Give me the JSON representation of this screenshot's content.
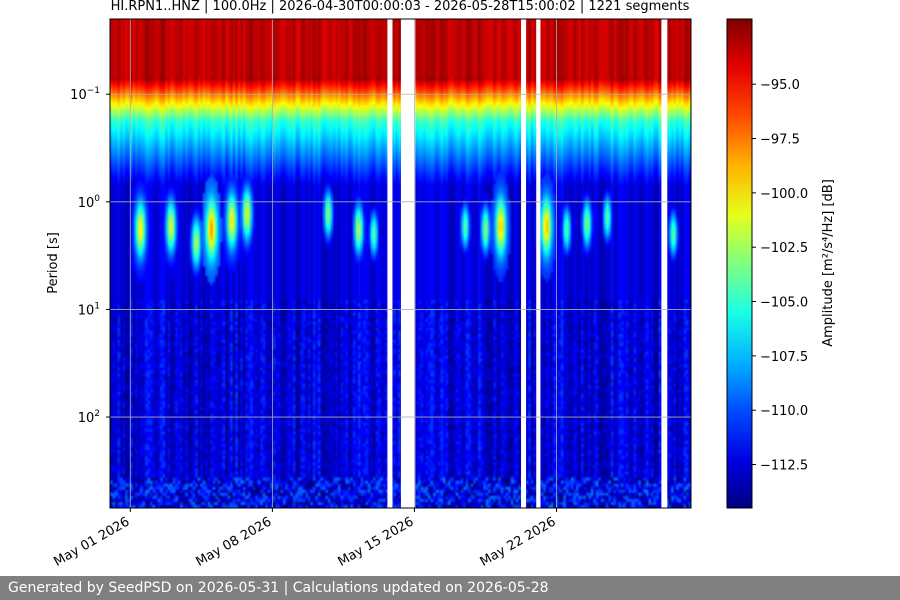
{
  "footer": {
    "text": "Generated by SeedPSD on 2026-05-31 | Calculations updated on 2026-05-28"
  },
  "chart_data": {
    "type": "heatmap",
    "title": "HI.RPN1..HNZ | 100.0Hz | 2026-04-30T00:00:03 - 2026-05-28T15:00:02 | 1221 segments",
    "xlabel": "",
    "ylabel": "Period [s]",
    "colorbar_label": "Amplitude [m²/s⁴/Hz] [dB]",
    "colormap": "jet",
    "x_range": [
      "2026-04-30T00:00:03",
      "2026-05-28T15:00:02"
    ],
    "x_ticks": [
      "May 01 2026",
      "May 08 2026",
      "May 15 2026",
      "May 22 2026"
    ],
    "y_scale": "log",
    "y_inverted": true,
    "y_range": [
      0.02,
      700
    ],
    "y_ticks": [
      {
        "value": 0.1,
        "base": "10",
        "exp": "−1"
      },
      {
        "value": 1,
        "base": "10",
        "exp": "0"
      },
      {
        "value": 10,
        "base": "10",
        "exp": "1"
      },
      {
        "value": 100,
        "base": "10",
        "exp": "2"
      }
    ],
    "color_range": [
      -114.5,
      -92.0
    ],
    "colorbar_ticks": [
      "−95.0",
      "−97.5",
      "−100.0",
      "−102.5",
      "−105.0",
      "−107.5",
      "−110.0",
      "−112.5"
    ],
    "colorbar_tick_values": [
      -95.0,
      -97.5,
      -100.0,
      -102.5,
      -105.0,
      -107.5,
      -110.0,
      -112.5
    ],
    "data_gaps": [
      [
        "2026-05-13T16:00:00",
        "2026-05-13T22:00:00"
      ],
      [
        "2026-05-14T08:00:00",
        "2026-05-15T01:00:00"
      ],
      [
        "2026-05-20T06:00:00",
        "2026-05-20T12:00:00"
      ],
      [
        "2026-05-21T00:00:00",
        "2026-05-21T05:00:00"
      ],
      [
        "2026-05-27T04:00:00",
        "2026-05-27T11:00:00"
      ]
    ],
    "microseism_events": [
      {
        "center": "2026-05-01T12:00:00",
        "period_s": 1.8,
        "amplitude_db": -100
      },
      {
        "center": "2026-05-03T00:00:00",
        "period_s": 1.7,
        "amplitude_db": -101
      },
      {
        "center": "2026-05-04T06:00:00",
        "period_s": 2.4,
        "amplitude_db": -102
      },
      {
        "center": "2026-05-05T00:00:00",
        "period_s": 1.8,
        "amplitude_db": -98
      },
      {
        "center": "2026-05-06T00:00:00",
        "period_s": 1.5,
        "amplitude_db": -100
      },
      {
        "center": "2026-05-06T18:00:00",
        "period_s": 1.3,
        "amplitude_db": -101
      },
      {
        "center": "2026-05-10T18:00:00",
        "period_s": 1.3,
        "amplitude_db": -103
      },
      {
        "center": "2026-05-12T06:00:00",
        "period_s": 1.8,
        "amplitude_db": -102
      },
      {
        "center": "2026-05-13T00:00:00",
        "period_s": 2.0,
        "amplitude_db": -104
      },
      {
        "center": "2026-05-17T12:00:00",
        "period_s": 1.7,
        "amplitude_db": -104
      },
      {
        "center": "2026-05-18T12:00:00",
        "period_s": 1.8,
        "amplitude_db": -103
      },
      {
        "center": "2026-05-19T06:00:00",
        "period_s": 1.7,
        "amplitude_db": -99
      },
      {
        "center": "2026-05-21T12:00:00",
        "period_s": 1.7,
        "amplitude_db": -99
      },
      {
        "center": "2026-05-22T12:00:00",
        "period_s": 1.8,
        "amplitude_db": -104
      },
      {
        "center": "2026-05-23T12:00:00",
        "period_s": 1.6,
        "amplitude_db": -103
      },
      {
        "center": "2026-05-24T12:00:00",
        "period_s": 1.4,
        "amplitude_db": -104
      },
      {
        "center": "2026-05-27T18:00:00",
        "period_s": 2.0,
        "amplitude_db": -104
      }
    ],
    "grid": true
  }
}
